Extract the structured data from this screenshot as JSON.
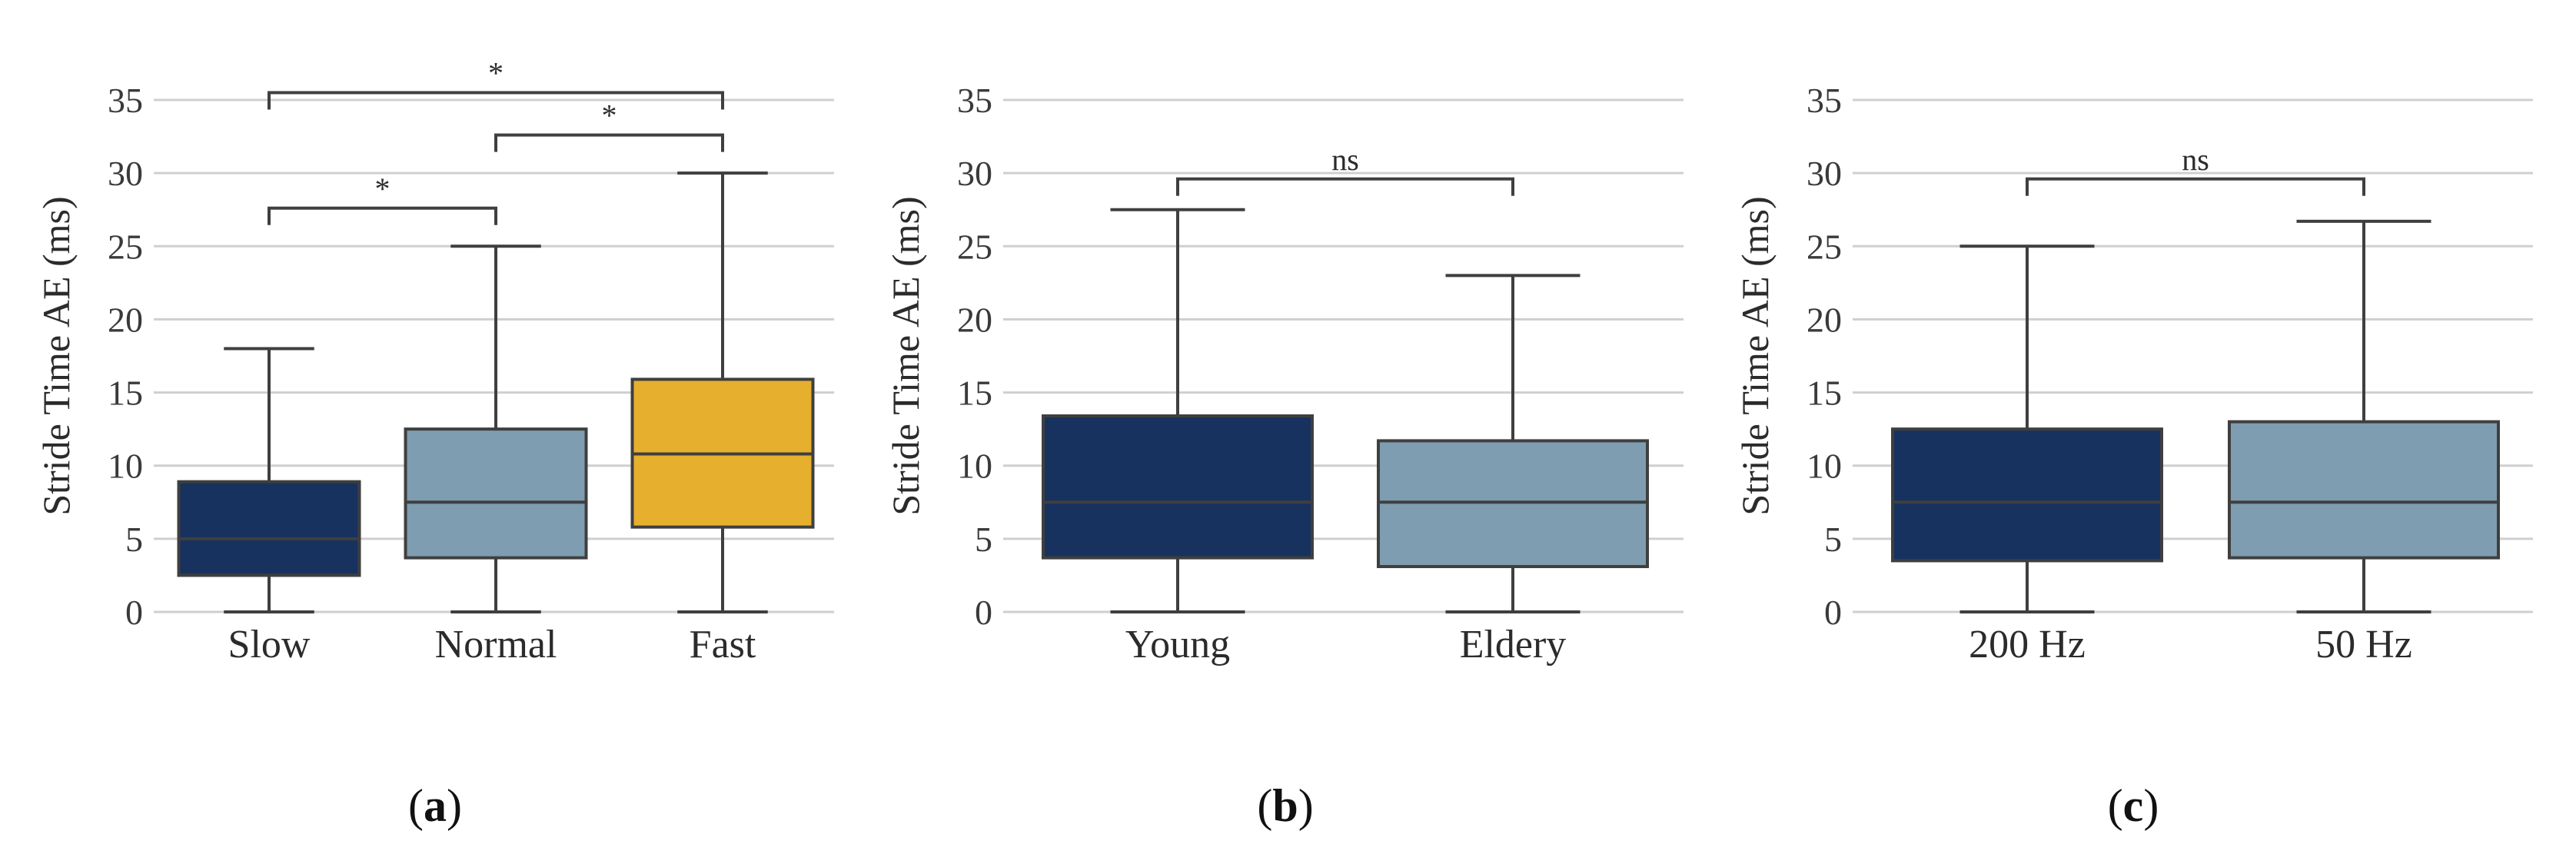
{
  "chart_data": [
    {
      "type": "box",
      "panel_label": "a",
      "ylabel": "Stride Time AE (ms)",
      "ylim": [
        0,
        35
      ],
      "yticks": [
        0,
        5,
        10,
        15,
        20,
        25,
        30,
        35
      ],
      "grid": true,
      "categories": [
        "Slow",
        "Normal",
        "Fast"
      ],
      "boxes": [
        {
          "category": "Slow",
          "whisker_low": 0,
          "q1": 2.5,
          "median": 5.0,
          "q3": 8.9,
          "whisker_high": 18.0,
          "color": "#17325e"
        },
        {
          "category": "Normal",
          "whisker_low": 0,
          "q1": 3.7,
          "median": 7.5,
          "q3": 12.5,
          "whisker_high": 25.0,
          "color": "#7f9db0"
        },
        {
          "category": "Fast",
          "whisker_low": 0,
          "q1": 5.8,
          "median": 10.8,
          "q3": 15.9,
          "whisker_high": 30.0,
          "color": "#e6af2e"
        }
      ],
      "significance": [
        {
          "from": 0,
          "to": 1,
          "label": "*",
          "y": 27.6
        },
        {
          "from": 1,
          "to": 2,
          "label": "*",
          "y": 32.6
        },
        {
          "from": 0,
          "to": 2,
          "label": "*",
          "y": 35.5
        }
      ]
    },
    {
      "type": "box",
      "panel_label": "b",
      "ylabel": "Stride Time AE (ms)",
      "ylim": [
        0,
        35
      ],
      "yticks": [
        0,
        5,
        10,
        15,
        20,
        25,
        30,
        35
      ],
      "grid": true,
      "categories": [
        "Young",
        "Eldery"
      ],
      "boxes": [
        {
          "category": "Young",
          "whisker_low": 0,
          "q1": 3.7,
          "median": 7.5,
          "q3": 13.4,
          "whisker_high": 27.5,
          "color": "#17325e"
        },
        {
          "category": "Eldery",
          "whisker_low": 0,
          "q1": 3.1,
          "median": 7.5,
          "q3": 11.7,
          "whisker_high": 23.0,
          "color": "#7f9db0"
        }
      ],
      "significance": [
        {
          "from": 0,
          "to": 1,
          "label": "ns",
          "y": 29.6
        }
      ]
    },
    {
      "type": "box",
      "panel_label": "c",
      "ylabel": "Stride Time AE (ms)",
      "ylim": [
        0,
        35
      ],
      "yticks": [
        0,
        5,
        10,
        15,
        20,
        25,
        30,
        35
      ],
      "grid": true,
      "categories": [
        "200 Hz",
        "50 Hz"
      ],
      "boxes": [
        {
          "category": "200 Hz",
          "whisker_low": 0,
          "q1": 3.5,
          "median": 7.5,
          "q3": 12.5,
          "whisker_high": 25.0,
          "color": "#17325e"
        },
        {
          "category": "50 Hz",
          "whisker_low": 0,
          "q1": 3.7,
          "median": 7.5,
          "q3": 13.0,
          "whisker_high": 26.7,
          "color": "#7f9db0"
        }
      ],
      "significance": [
        {
          "from": 0,
          "to": 1,
          "label": "ns",
          "y": 29.6
        }
      ]
    }
  ]
}
